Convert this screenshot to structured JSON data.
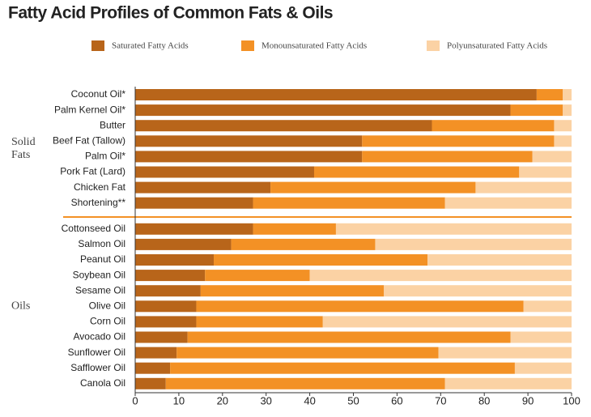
{
  "chart_data": {
    "type": "stacked_bar_horizontal",
    "title": "Fatty Acid Profiles of Common Fats & Oils",
    "groups": [
      {
        "label": "Solid Fats",
        "categories": [
          "Coconut Oil*",
          "Palm Kernel Oil*",
          "Butter",
          "Beef Fat (Tallow)",
          "Palm Oil*",
          "Pork Fat (Lard)",
          "Chicken Fat",
          "Shortening**"
        ]
      },
      {
        "label": "Oils",
        "categories": [
          "Cottonseed  Oil",
          "Salmon Oil",
          "Peanut Oil",
          "Soybean Oil",
          "Sesame Oil",
          "Olive Oil",
          "Corn Oil",
          "Avocado Oil",
          "Sunflower Oil",
          "Safflower Oil",
          "Canola Oil"
        ]
      }
    ],
    "series": [
      {
        "name": "Saturated Fatty Acids",
        "color": "#b8651a",
        "values": [
          92,
          86,
          68,
          52,
          52,
          41,
          31,
          27,
          27,
          22,
          18,
          16,
          15,
          14,
          14,
          12,
          9.5,
          8,
          7
        ]
      },
      {
        "name": "Monounsaturated Fatty Acids",
        "color": "#f39125",
        "values": [
          6,
          12,
          28,
          44,
          39,
          47,
          47,
          44,
          19,
          33,
          49,
          24,
          42,
          75,
          29,
          74,
          60,
          79,
          64
        ]
      },
      {
        "name": "Polyunsaturated Fatty Acids",
        "color": "#fbd2a4",
        "values": [
          2,
          2,
          4,
          4,
          9,
          12,
          22,
          29,
          54,
          45,
          33,
          60,
          43,
          11,
          57,
          14,
          30.5,
          13,
          29
        ]
      }
    ],
    "xlim": [
      0,
      100
    ],
    "xticks": [
      0,
      10,
      20,
      30,
      40,
      50,
      60,
      70,
      80,
      90,
      100
    ]
  }
}
